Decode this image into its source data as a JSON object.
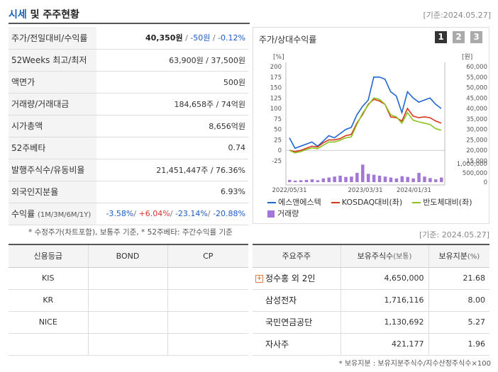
{
  "header": {
    "title_main": "시세",
    "title_rest": "및 주주현황",
    "date": "[기준:2024.05.27]"
  },
  "quote": {
    "price_label": "주가/전일대비/수익률",
    "price": "40,350원",
    "change": "-50원",
    "change_pct": "-0.12%",
    "w52_label": "52Weeks 최고/최저",
    "w52": "63,900원 / 37,500원",
    "face_label": "액면가",
    "face": "500원",
    "volume_label": "거래량/거래대금",
    "volume": "184,658주 / 74억원",
    "mcap_label": "시가총액",
    "mcap": "8,656억원",
    "beta_label": "52주베타",
    "beta": "0.74",
    "shares_label": "발행주식수/유동비율",
    "shares": "21,451,447주 / 76.36%",
    "foreign_label": "외국인지분율",
    "foreign": "6.93%",
    "ret_label": "수익률",
    "ret_periods": "(1M/3M/6M/1Y)",
    "ret_1m": "-3.58%",
    "ret_3m": "+6.04%",
    "ret_6m": "-23.14%",
    "ret_1y": "-20.88%"
  },
  "note1": "* 수정주가(차트포함), 보통주 기준, * 52주베타: 주간수익률 기준",
  "chart_panel": {
    "title": "주가/상대수익률",
    "pages": [
      "1",
      "2",
      "3"
    ]
  },
  "chart_data": {
    "type": "line",
    "left_unit": "[%]",
    "right_unit": "[원]",
    "left_ticks": [
      "200",
      "175",
      "150",
      "125",
      "100",
      "75",
      "50",
      "25",
      "0",
      "-25"
    ],
    "right_ticks": [
      "60,000",
      "55,000",
      "50,000",
      "45,000",
      "40,000",
      "35,000",
      "30,000",
      "25,000",
      "20,000",
      "15,000"
    ],
    "volume_ticks": [
      "1,000,000",
      "500,000",
      "0"
    ],
    "x_labels": [
      "2022/05/31",
      "2023/03/31",
      "2024/01/31"
    ],
    "ylim_pct": [
      -25,
      200
    ],
    "series": [
      {
        "name": "에스앤에스텍",
        "color": "#1e66d0",
        "values": [
          30,
          5,
          10,
          15,
          20,
          10,
          22,
          35,
          30,
          40,
          50,
          55,
          85,
          105,
          120,
          175,
          175,
          170,
          140,
          130,
          90,
          140,
          125,
          115,
          120,
          125,
          110,
          100
        ]
      },
      {
        "name": "KOSDAQ대비(좌)",
        "color": "#d6361c",
        "values": [
          0,
          -3,
          0,
          5,
          10,
          8,
          18,
          25,
          25,
          28,
          35,
          38,
          65,
          85,
          110,
          122,
          118,
          110,
          80,
          78,
          70,
          100,
          82,
          78,
          80,
          78,
          70,
          65
        ]
      },
      {
        "name": "반도체대비(좌)",
        "color": "#8cc21f",
        "values": [
          0,
          -6,
          -3,
          2,
          6,
          4,
          12,
          20,
          20,
          24,
          30,
          32,
          62,
          88,
          108,
          125,
          122,
          110,
          85,
          80,
          65,
          90,
          72,
          68,
          65,
          62,
          52,
          48
        ]
      }
    ],
    "volume_name": "거래량",
    "volume_color": "#a377d6",
    "volume": [
      0.12,
      0.08,
      0.1,
      0.12,
      0.15,
      0.1,
      0.2,
      0.25,
      0.3,
      0.35,
      0.28,
      0.3,
      0.5,
      0.95,
      0.45,
      0.4,
      0.35,
      0.3,
      0.25,
      0.2,
      0.32,
      0.28,
      0.2,
      0.5,
      0.3,
      0.22,
      0.15,
      0.25
    ]
  },
  "date_mid": "[기준: 2024.05.27]",
  "credit": {
    "headers": [
      "신용등급",
      "BOND",
      "CP"
    ],
    "rows": [
      [
        "KIS",
        "",
        ""
      ],
      [
        "KR",
        "",
        ""
      ],
      [
        "NICE",
        "",
        ""
      ],
      [
        "",
        "",
        ""
      ]
    ]
  },
  "holders": {
    "h1": "주요주주",
    "h2": "보유주식수",
    "h2u": "(보통)",
    "h3": "보유지분",
    "h3u": "(%)",
    "rows": [
      {
        "name": "정수홍 외 2인",
        "shares": "4,650,000",
        "pct": "21.68"
      },
      {
        "name": "삼성전자",
        "shares": "1,716,116",
        "pct": "8.00"
      },
      {
        "name": "국민연금공단",
        "shares": "1,130,692",
        "pct": "5.27"
      },
      {
        "name": "자사주",
        "shares": "421,177",
        "pct": "1.96"
      }
    ]
  },
  "note2": "* 보유지분 : 보유지분주식수/지수산정주식수×100"
}
